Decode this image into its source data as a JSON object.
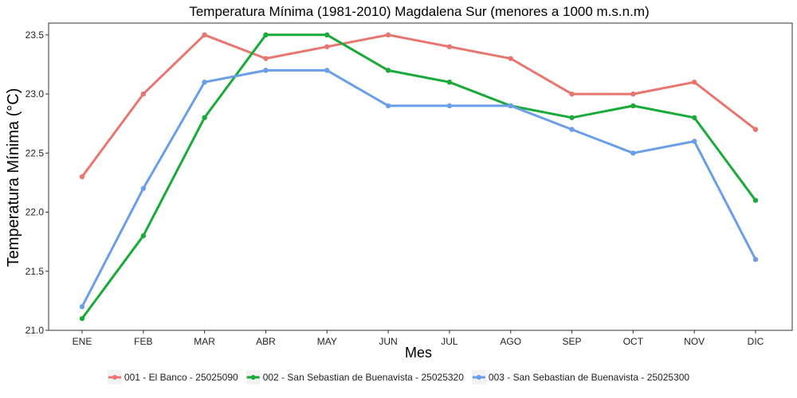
{
  "chart_data": {
    "type": "line",
    "title": "Temperatura Mínima (1981-2010) Magdalena Sur (menores a 1000 m.s.n.m)",
    "xlabel": "Mes",
    "ylabel": "Temperatura Mínima (°C)",
    "categories": [
      "ENE",
      "FEB",
      "MAR",
      "ABR",
      "MAY",
      "JUN",
      "JUL",
      "AGO",
      "SEP",
      "OCT",
      "NOV",
      "DIC"
    ],
    "ylim": [
      21.0,
      23.6
    ],
    "yticks": [
      21.0,
      21.5,
      22.0,
      22.5,
      23.0,
      23.5
    ],
    "ytick_labels": [
      "21.0",
      "21.5",
      "22.0",
      "22.5",
      "23.0",
      "23.5"
    ],
    "grid": false,
    "legend_position": "bottom",
    "series": [
      {
        "name": "001 - El Banco - 25025090",
        "color": "#E8756F",
        "values": [
          22.3,
          23.0,
          23.5,
          23.3,
          23.4,
          23.5,
          23.4,
          23.3,
          23.0,
          23.0,
          23.1,
          22.7
        ]
      },
      {
        "name": "002 - San Sebastian de Buenavista - 25025320",
        "color": "#1AAA3A",
        "values": [
          21.1,
          21.8,
          22.8,
          23.5,
          23.5,
          23.2,
          23.1,
          22.9,
          22.8,
          22.9,
          22.8,
          22.1
        ]
      },
      {
        "name": "003 - San Sebastian de Buenavista - 25025300",
        "color": "#6A9EE8",
        "values": [
          21.2,
          22.2,
          23.1,
          23.2,
          23.2,
          22.9,
          22.9,
          22.9,
          22.7,
          22.5,
          22.6,
          21.6
        ]
      }
    ]
  }
}
